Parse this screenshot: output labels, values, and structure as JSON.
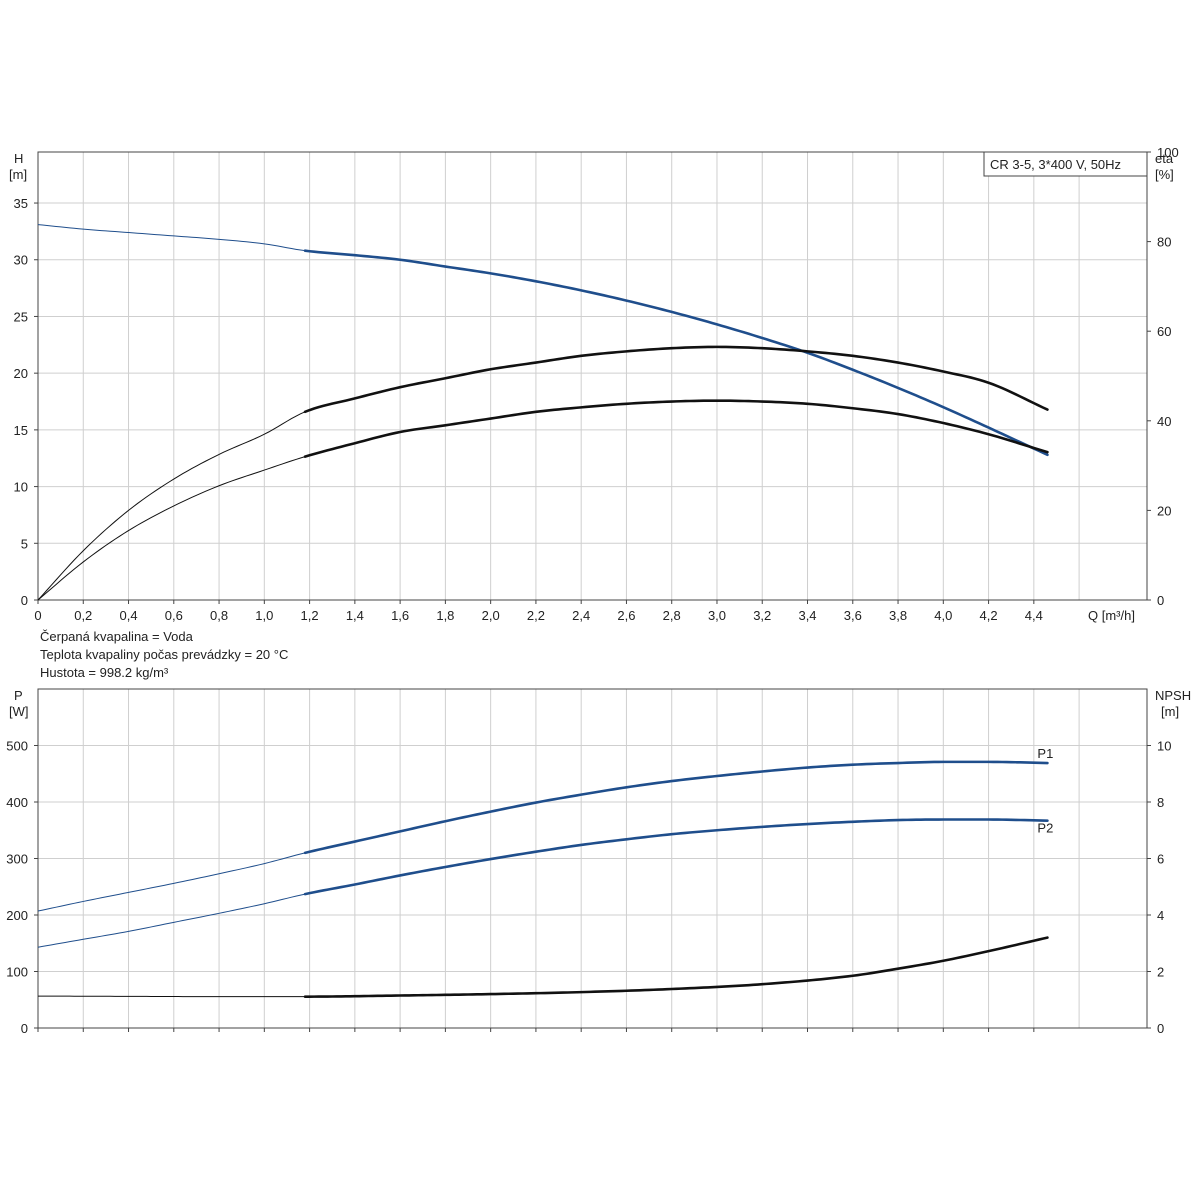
{
  "chart_data": [
    {
      "type": "line",
      "label_box": "CR 3-5, 3*400 V, 50Hz",
      "xlabel": "Q [m³/h]",
      "xlim": [
        0,
        4.9
      ],
      "x_ticks": [
        "0",
        "0,2",
        "0,4",
        "0,6",
        "0,8",
        "1,0",
        "1,2",
        "1,4",
        "1,6",
        "1,8",
        "2,0",
        "2,2",
        "2,4",
        "2,6",
        "2,8",
        "3,0",
        "3,2",
        "3,4",
        "3,6",
        "3,8",
        "4,0",
        "4,2",
        "4,4"
      ],
      "x_tick_values": [
        0,
        0.2,
        0.4,
        0.6,
        0.8,
        1.0,
        1.2,
        1.4,
        1.6,
        1.8,
        2.0,
        2.2,
        2.4,
        2.6,
        2.8,
        3.0,
        3.2,
        3.4,
        3.6,
        3.8,
        4.0,
        4.2,
        4.4
      ],
      "left_axis": {
        "label": "H",
        "unit": "[m]",
        "ylim": [
          0,
          39.5
        ],
        "ticks": [
          0,
          5,
          10,
          15,
          20,
          25,
          30,
          35
        ]
      },
      "right_axis": {
        "label": "eta",
        "unit": "[%]",
        "ylim": [
          0,
          100
        ],
        "ticks": [
          0,
          20,
          40,
          60,
          80,
          100
        ]
      },
      "grid": true,
      "operating_range_start": 1.18,
      "series": [
        {
          "axis": "left",
          "color": "#1f4e8c",
          "x": [
            0,
            0.2,
            0.4,
            0.6,
            0.8,
            1.0,
            1.18,
            1.4,
            1.6,
            1.8,
            2.0,
            2.2,
            2.4,
            2.6,
            2.8,
            3.0,
            3.2,
            3.4,
            3.6,
            3.8,
            4.0,
            4.2,
            4.46
          ],
          "values": [
            33.1,
            32.7,
            32.4,
            32.1,
            31.8,
            31.4,
            30.8,
            30.4,
            30.0,
            29.4,
            28.8,
            28.1,
            27.3,
            26.4,
            25.4,
            24.3,
            23.1,
            21.8,
            20.3,
            18.7,
            17.0,
            15.2,
            12.8
          ]
        },
        {
          "axis": "right",
          "color": "#111111",
          "x": [
            0,
            0.2,
            0.4,
            0.6,
            0.8,
            1.0,
            1.18,
            1.4,
            1.6,
            1.8,
            2.0,
            2.2,
            2.4,
            2.6,
            2.8,
            3.0,
            3.2,
            3.4,
            3.6,
            3.8,
            4.0,
            4.2,
            4.46
          ],
          "values": [
            0,
            11.0,
            20.0,
            27.0,
            32.5,
            37.0,
            42.0,
            45.0,
            47.5,
            49.5,
            51.5,
            53.0,
            54.5,
            55.5,
            56.2,
            56.5,
            56.2,
            55.5,
            54.5,
            53.0,
            51.0,
            48.5,
            42.5
          ]
        },
        {
          "axis": "right",
          "color": "#111111",
          "x": [
            0,
            0.2,
            0.4,
            0.6,
            0.8,
            1.0,
            1.18,
            1.4,
            1.6,
            1.8,
            2.0,
            2.2,
            2.4,
            2.6,
            2.8,
            3.0,
            3.2,
            3.4,
            3.6,
            3.8,
            4.0,
            4.2,
            4.46
          ],
          "values": [
            0,
            8.5,
            15.5,
            21.0,
            25.5,
            29.0,
            32.0,
            35.0,
            37.5,
            39.0,
            40.5,
            42.0,
            43.0,
            43.8,
            44.3,
            44.5,
            44.3,
            43.8,
            42.8,
            41.5,
            39.5,
            37.0,
            33.0
          ]
        }
      ]
    },
    {
      "type": "line",
      "notes": [
        "Čerpaná kvapalina = Voda",
        "Teplota kvapaliny počas prevádzky = 20 °C",
        "Hustota = 998.2 kg/m³"
      ],
      "xlim": [
        0,
        4.9
      ],
      "left_axis": {
        "label": "P",
        "unit": "[W]",
        "ylim": [
          0,
          600
        ],
        "ticks": [
          0,
          100,
          200,
          300,
          400,
          500
        ]
      },
      "right_axis": {
        "label": "NPSH",
        "unit": "[m]",
        "ylim": [
          0,
          12
        ],
        "ticks": [
          0,
          2,
          4,
          6,
          8,
          10
        ]
      },
      "grid": true,
      "operating_range_start": 1.18,
      "series": [
        {
          "name": "P1",
          "axis": "left",
          "color": "#1f4e8c",
          "x": [
            0,
            0.2,
            0.4,
            0.6,
            0.8,
            1.0,
            1.18,
            1.4,
            1.6,
            1.8,
            2.0,
            2.2,
            2.4,
            2.6,
            2.8,
            3.0,
            3.2,
            3.4,
            3.6,
            3.8,
            4.0,
            4.2,
            4.46
          ],
          "values": [
            207,
            224,
            240,
            256,
            273,
            291,
            310,
            330,
            348,
            366,
            383,
            399,
            413,
            426,
            437,
            446,
            454,
            461,
            466,
            469,
            471,
            471,
            469
          ]
        },
        {
          "name": "P2",
          "axis": "left",
          "color": "#1f4e8c",
          "x": [
            0,
            0.2,
            0.4,
            0.6,
            0.8,
            1.0,
            1.18,
            1.4,
            1.6,
            1.8,
            2.0,
            2.2,
            2.4,
            2.6,
            2.8,
            3.0,
            3.2,
            3.4,
            3.6,
            3.8,
            4.0,
            4.2,
            4.46
          ],
          "values": [
            143,
            157,
            171,
            187,
            203,
            220,
            237,
            254,
            270,
            285,
            299,
            312,
            324,
            334,
            343,
            350,
            356,
            361,
            365,
            368,
            369,
            369,
            367
          ]
        },
        {
          "axis": "right",
          "color": "#111111",
          "x": [
            0,
            0.4,
            0.8,
            1.18,
            1.6,
            2.0,
            2.4,
            2.8,
            3.2,
            3.6,
            3.8,
            4.0,
            4.2,
            4.46
          ],
          "values": [
            1.13,
            1.12,
            1.11,
            1.11,
            1.15,
            1.2,
            1.27,
            1.38,
            1.55,
            1.85,
            2.1,
            2.38,
            2.72,
            3.2
          ]
        }
      ]
    }
  ]
}
